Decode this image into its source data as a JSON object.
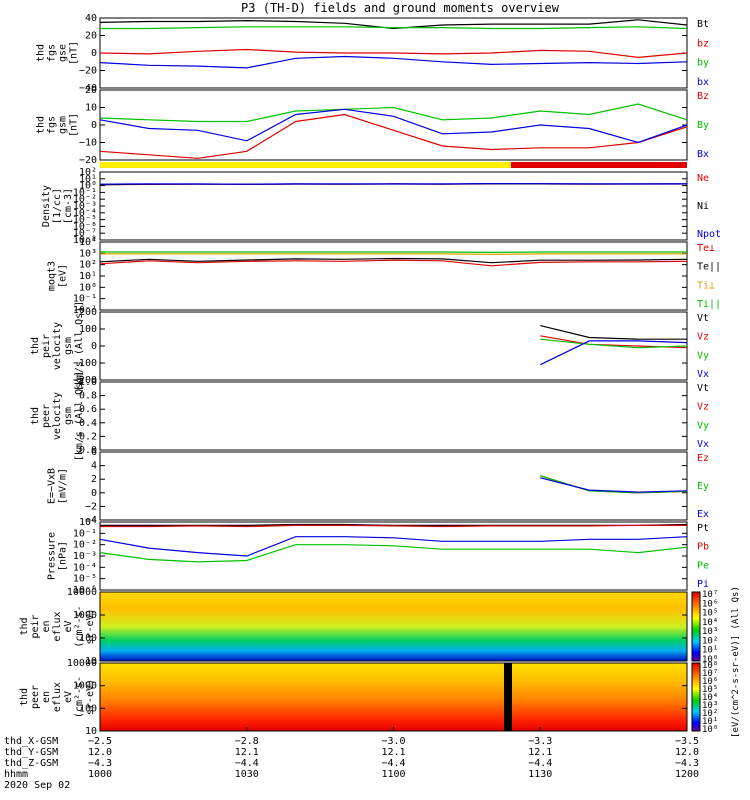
{
  "title": "P3 (TH-D) fields and ground moments overview",
  "panels": [
    {
      "id": "fgs-gse",
      "ylabel": [
        "thd",
        "fgs",
        "gse",
        "[nT]"
      ],
      "ticks": [
        "40",
        "20",
        "0",
        "−20",
        "−40"
      ],
      "legend": [
        {
          "text": "Bt",
          "color": "#000000"
        },
        {
          "text": "bz",
          "color": "#e00000"
        },
        {
          "text": "by",
          "color": "#00c000"
        },
        {
          "text": "bx",
          "color": "#0000e0"
        }
      ]
    },
    {
      "id": "fgs-gsm",
      "ylabel": [
        "thd",
        "fgs",
        "gsm",
        "[nT]"
      ],
      "ticks": [
        "20",
        "10",
        "0",
        "−10",
        "−20"
      ],
      "legend": [
        {
          "text": "Bz",
          "color": "#e00000"
        },
        {
          "text": "By",
          "color": "#00c000"
        },
        {
          "text": "Bx",
          "color": "#0000e0"
        }
      ]
    },
    {
      "id": "density",
      "ylabel": [
        "Density",
        "[1/cc]",
        "[cm-3]"
      ],
      "ticks": [
        "10²",
        "10¹",
        "10⁰",
        "10⁻¹",
        "10⁻²",
        "10⁻³",
        "10⁻⁴",
        "10⁻⁵",
        "10⁻⁶",
        "10⁻⁷",
        "10⁻⁸"
      ],
      "legend": [
        {
          "text": "Ne",
          "color": "#e00000"
        },
        {
          "text": "Ni",
          "color": "#000000"
        },
        {
          "text": "Npot",
          "color": "#0000e0"
        }
      ]
    },
    {
      "id": "temperature",
      "ylabel": [
        "moqt3",
        "[eV]"
      ],
      "ticks": [
        "10⁴",
        "10³",
        "10²",
        "10¹",
        "10⁰",
        "10⁻¹",
        "10⁻²"
      ],
      "legend": [
        {
          "text": "Te⊥",
          "color": "#e00000"
        },
        {
          "text": "Te||",
          "color": "#000000"
        },
        {
          "text": "Ti⊥",
          "color": "#e0a000"
        },
        {
          "text": "Ti||",
          "color": "#00c000"
        }
      ]
    },
    {
      "id": "peir-velocity",
      "ylabel": [
        "thd",
        "peir",
        "velocity",
        "gsm",
        "[km/s (All Qs)]"
      ],
      "ticks": [
        "200",
        "100",
        "0",
        "−100",
        "−200"
      ],
      "legend": [
        {
          "text": "Vt",
          "color": "#000000"
        },
        {
          "text": "Vz",
          "color": "#e00000"
        },
        {
          "text": "Vy",
          "color": "#00c000"
        },
        {
          "text": "Vx",
          "color": "#0000e0"
        }
      ]
    },
    {
      "id": "peer-velocity",
      "ylabel": [
        "thd",
        "peer",
        "velocity",
        "gsm",
        "[km/s (All Qs)]"
      ],
      "ticks": [
        "1.0",
        "0.8",
        "0.6",
        "0.4",
        "0.2",
        "0.0"
      ],
      "legend": [
        {
          "text": "Vt",
          "color": "#000000"
        },
        {
          "text": "Vz",
          "color": "#e00000"
        },
        {
          "text": "Vy",
          "color": "#00c000"
        },
        {
          "text": "Vx",
          "color": "#0000e0"
        }
      ]
    },
    {
      "id": "efield",
      "ylabel": [
        "E=−VxB",
        "[mV/m]"
      ],
      "ticks": [
        "6",
        "4",
        "2",
        "0",
        "−2",
        "−4"
      ],
      "legend": [
        {
          "text": "Ez",
          "color": "#e00000"
        },
        {
          "text": "Ey",
          "color": "#00c000"
        },
        {
          "text": "Ex",
          "color": "#0000e0"
        }
      ]
    },
    {
      "id": "pressure",
      "ylabel": [
        "Pressure",
        "[nPa]"
      ],
      "ticks": [
        "10⁰",
        "10⁻¹",
        "10⁻²",
        "10⁻³",
        "10⁻⁴",
        "10⁻⁵",
        "10⁻⁶"
      ],
      "legend": [
        {
          "text": "Pt",
          "color": "#000000"
        },
        {
          "text": "Pb",
          "color": "#e00000"
        },
        {
          "text": "Pe",
          "color": "#00c000"
        },
        {
          "text": "Pi",
          "color": "#0000e0"
        }
      ]
    },
    {
      "id": "peir-spec",
      "ylabel": [
        "thd",
        "peir",
        "en",
        "eflux",
        "eV",
        "(cm²-s-",
        "sr-eV)"
      ],
      "ticks": [
        "10000",
        "1000",
        "100",
        "10"
      ],
      "legend": []
    },
    {
      "id": "peer-spec",
      "ylabel": [
        "thd",
        "peer",
        "en",
        "eflux",
        "eV",
        "(cm²-s-",
        "sr-eV)"
      ],
      "ticks": [
        "10000",
        "1000",
        "100",
        "10"
      ],
      "legend": []
    }
  ],
  "colorbar": {
    "label": "[eV/(cm^2-s-sr-eV)] (All Qs)",
    "upper_ticks": [
      "10⁷",
      "10⁶",
      "10⁵",
      "10⁴",
      "10³",
      "10²",
      "10¹",
      "10⁰"
    ],
    "lower_ticks": [
      "10⁸",
      "10⁷",
      "10⁶",
      "10⁵",
      "10⁴",
      "10³",
      "10²",
      "10¹",
      "10⁰"
    ]
  },
  "xaxis": {
    "row_labels": [
      "thd_X-GSM",
      "thd_Y-GSM",
      "thd_Z-GSM",
      "hhmm",
      "2020 Sep 02"
    ],
    "columns": [
      [
        "−2.5",
        "−2.8",
        "−3.0",
        "−3.3",
        "−3.5"
      ],
      [
        "12.0",
        "12.1",
        "12.1",
        "12.1",
        "12.0"
      ],
      [
        "−4.3",
        "−4.4",
        "−4.4",
        "−4.4",
        "−4.3"
      ],
      [
        "1000",
        "1030",
        "1100",
        "1130",
        "1200"
      ]
    ]
  },
  "mode_bar": {
    "colors": [
      "#ffee00",
      "#e00000"
    ],
    "switch_hhmm": "1124"
  },
  "chart_data": {
    "type": "line",
    "title": "P3 (TH-D) fields and ground moments overview",
    "x_unit": "hhmm",
    "xlim": [
      "1000",
      "1200"
    ],
    "x": [
      "1000",
      "1010",
      "1020",
      "1030",
      "1040",
      "1050",
      "1100",
      "1110",
      "1120",
      "1130",
      "1140",
      "1150",
      "1200"
    ],
    "panels": [
      {
        "ylabel": "thd fgs gse [nT]",
        "ylim": [
          -40,
          40
        ],
        "series": [
          {
            "name": "Bt",
            "values": [
              35,
              36,
              36,
              37,
              36,
              34,
              28,
              32,
              33,
              33,
              33,
              38,
              32
            ]
          },
          {
            "name": "bz",
            "values": [
              0,
              -1,
              2,
              4,
              1,
              0,
              0,
              -1,
              0,
              3,
              2,
              -5,
              0
            ]
          },
          {
            "name": "by",
            "values": [
              28,
              28,
              29,
              30,
              30,
              30,
              29,
              29,
              28,
              28,
              29,
              30,
              28
            ]
          },
          {
            "name": "bx",
            "values": [
              -11,
              -14,
              -15,
              -17,
              -6,
              -4,
              -6,
              -10,
              -13,
              -12,
              -11,
              -12,
              -10
            ]
          }
        ]
      },
      {
        "ylabel": "thd fgs gsm [nT]",
        "ylim": [
          -20,
          20
        ],
        "series": [
          {
            "name": "Bz",
            "values": [
              -15,
              -17,
              -19,
              -15,
              2,
              6,
              -3,
              -12,
              -14,
              -13,
              -13,
              -10,
              -1
            ]
          },
          {
            "name": "By",
            "values": [
              4,
              3,
              2,
              2,
              8,
              9,
              10,
              3,
              4,
              8,
              6,
              12,
              3
            ]
          },
          {
            "name": "Bx",
            "values": [
              3,
              -2,
              -3,
              -9,
              6,
              9,
              5,
              -5,
              -4,
              0,
              -2,
              -10,
              0
            ]
          }
        ]
      },
      {
        "ylabel": "Density [1/cc] [cm-3]",
        "ylim": [
          1e-08,
          100
        ],
        "yscale": "log",
        "series": [
          {
            "name": "Ne",
            "values": [
              1.3,
              1.5,
              1.6,
              1.5,
              1.7,
              1.6,
              1.8,
              1.6,
              1.8,
              1.8,
              1.6,
              1.7,
              1.7
            ]
          },
          {
            "name": "Ni",
            "values": [
              1.4,
              1.6,
              1.7,
              1.6,
              1.7,
              1.6,
              1.7,
              1.6,
              1.9,
              1.8,
              1.7,
              1.7,
              1.8
            ]
          },
          {
            "name": "Npot",
            "values": [
              1.6,
              1.8,
              1.7,
              1.6,
              1.8,
              1.8,
              1.8,
              1.8,
              2.0,
              1.9,
              1.8,
              1.8,
              1.8
            ]
          }
        ]
      },
      {
        "ylabel": "moqt3 [eV]",
        "ylim": [
          0.01,
          10000
        ],
        "yscale": "log",
        "series": [
          {
            "name": "Te⊥",
            "values": [
              120,
              220,
              150,
              200,
              220,
              200,
              250,
              220,
              80,
              160,
              180,
              180,
              200
            ]
          },
          {
            "name": "Te||",
            "values": [
              180,
              300,
              200,
              260,
              320,
              300,
              350,
              320,
              150,
              250,
              250,
              260,
              300
            ]
          },
          {
            "name": "Ti⊥",
            "values": [
              900,
              900,
              900,
              900,
              900,
              900,
              900,
              900,
              800,
              900,
              900,
              900,
              900
            ]
          },
          {
            "name": "Ti||",
            "values": [
              1300,
              1300,
              1300,
              1300,
              1300,
              1300,
              1300,
              1300,
              1200,
              1300,
              1300,
              1300,
              1300
            ]
          }
        ]
      },
      {
        "ylabel": "thd peir velocity gsm [km/s (All Qs)]",
        "ylim": [
          -200,
          200
        ],
        "series": [
          {
            "name": "Vt",
            "values": [
              null,
              null,
              null,
              null,
              null,
              null,
              null,
              null,
              null,
              120,
              50,
              40,
              40
            ]
          },
          {
            "name": "Vz",
            "values": [
              null,
              null,
              null,
              null,
              null,
              null,
              null,
              null,
              null,
              60,
              10,
              0,
              -10
            ]
          },
          {
            "name": "Vy",
            "values": [
              null,
              null,
              null,
              null,
              null,
              null,
              null,
              null,
              null,
              40,
              10,
              -10,
              0
            ]
          },
          {
            "name": "Vx",
            "values": [
              null,
              null,
              null,
              null,
              null,
              null,
              null,
              null,
              null,
              -110,
              30,
              30,
              20
            ]
          }
        ]
      },
      {
        "ylabel": "thd peer velocity gsm [km/s (All Qs)]",
        "ylim": [
          0,
          1
        ],
        "series": []
      },
      {
        "ylabel": "E=-VxB [mV/m]",
        "ylim": [
          -4,
          6
        ],
        "series": [
          {
            "name": "Ez",
            "values": [
              null,
              null,
              null,
              null,
              null,
              null,
              null,
              null,
              null,
              2.5,
              0.3,
              0.0,
              0.2
            ]
          },
          {
            "name": "Ey",
            "values": [
              null,
              null,
              null,
              null,
              null,
              null,
              null,
              null,
              null,
              2.5,
              0.3,
              0.0,
              0.2
            ]
          },
          {
            "name": "Ex",
            "values": [
              null,
              null,
              null,
              null,
              null,
              null,
              null,
              null,
              null,
              2.2,
              0.4,
              0.1,
              0.3
            ]
          }
        ]
      },
      {
        "ylabel": "Pressure [nPa]",
        "ylim": [
          1e-06,
          1
        ],
        "yscale": "log",
        "series": [
          {
            "name": "Pt",
            "values": [
              0.5,
              0.5,
              0.5,
              0.5,
              0.6,
              0.6,
              0.5,
              0.5,
              0.5,
              0.5,
              0.5,
              0.5,
              0.6
            ]
          },
          {
            "name": "Pb",
            "values": [
              0.4,
              0.4,
              0.45,
              0.4,
              0.5,
              0.5,
              0.45,
              0.4,
              0.45,
              0.45,
              0.45,
              0.5,
              0.5
            ]
          },
          {
            "name": "Pe",
            "values": [
              0.002,
              0.0005,
              0.0003,
              0.0004,
              0.01,
              0.01,
              0.008,
              0.004,
              0.004,
              0.004,
              0.004,
              0.002,
              0.006
            ]
          },
          {
            "name": "Pi",
            "values": [
              0.03,
              0.005,
              0.002,
              0.001,
              0.05,
              0.05,
              0.04,
              0.02,
              0.02,
              0.02,
              0.03,
              0.03,
              0.05
            ]
          }
        ]
      }
    ]
  }
}
